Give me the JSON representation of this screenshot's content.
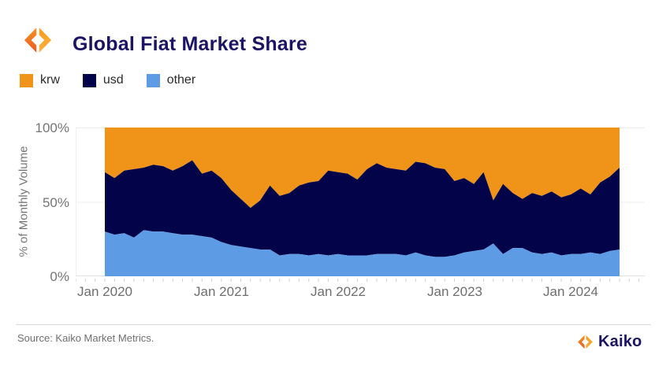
{
  "header": {
    "title": "Global Fiat Market Share"
  },
  "legend": {
    "items": [
      {
        "label": "krw",
        "color": "#F09419"
      },
      {
        "label": "usd",
        "color": "#020349"
      },
      {
        "label": "other",
        "color": "#5D9BE5"
      }
    ]
  },
  "chart_data": {
    "type": "area",
    "stacked": true,
    "title": "Global Fiat Market Share",
    "ylabel": "% of Monthly Volume",
    "xlabel": "",
    "ylim": [
      0,
      100
    ],
    "grid": "horizontal-light",
    "legend_position": "top-left",
    "yticks": [
      "100%",
      "50%",
      "0%"
    ],
    "xticks": [
      "Jan 2020",
      "Jan 2021",
      "Jan 2022",
      "Jan 2023",
      "Jan 2024"
    ],
    "x": [
      "Jan 2020",
      "Feb 2020",
      "Mar 2020",
      "Apr 2020",
      "May 2020",
      "Jun 2020",
      "Jul 2020",
      "Aug 2020",
      "Sep 2020",
      "Oct 2020",
      "Nov 2020",
      "Dec 2020",
      "Jan 2021",
      "Feb 2021",
      "Mar 2021",
      "Apr 2021",
      "May 2021",
      "Jun 2021",
      "Jul 2021",
      "Aug 2021",
      "Sep 2021",
      "Oct 2021",
      "Nov 2021",
      "Dec 2021",
      "Jan 2022",
      "Feb 2022",
      "Mar 2022",
      "Apr 2022",
      "May 2022",
      "Jun 2022",
      "Jul 2022",
      "Aug 2022",
      "Sep 2022",
      "Oct 2022",
      "Nov 2022",
      "Dec 2022",
      "Jan 2023",
      "Feb 2023",
      "Mar 2023",
      "Apr 2023",
      "May 2023",
      "Jun 2023",
      "Jul 2023",
      "Aug 2023",
      "Sep 2023",
      "Oct 2023",
      "Nov 2023",
      "Dec 2023",
      "Jan 2024",
      "Feb 2024",
      "Mar 2024",
      "Apr 2024",
      "May 2024",
      "Jun 2024"
    ],
    "series": [
      {
        "name": "other",
        "color": "#5D9BE5",
        "values": [
          30,
          28,
          29,
          26,
          31,
          30,
          30,
          29,
          28,
          28,
          27,
          26,
          23,
          21,
          20,
          19,
          18,
          18,
          14,
          15,
          15,
          14,
          15,
          14,
          15,
          14,
          14,
          14,
          15,
          15,
          15,
          14,
          16,
          14,
          13,
          13,
          14,
          16,
          17,
          18,
          22,
          15,
          19,
          19,
          16,
          15,
          16,
          14,
          15,
          15,
          16,
          15,
          17,
          18
        ]
      },
      {
        "name": "usd",
        "color": "#020349",
        "values": [
          40,
          38,
          42,
          46,
          42,
          45,
          44,
          42,
          46,
          50,
          42,
          45,
          43,
          37,
          32,
          27,
          33,
          43,
          40,
          41,
          46,
          49,
          49,
          57,
          55,
          55,
          51,
          58,
          61,
          58,
          57,
          57,
          61,
          62,
          60,
          59,
          50,
          50,
          45,
          52,
          29,
          47,
          37,
          33,
          40,
          39,
          41,
          39,
          40,
          44,
          39,
          48,
          50,
          55
        ]
      },
      {
        "name": "krw",
        "color": "#F09419",
        "values": [
          30,
          34,
          29,
          28,
          27,
          25,
          26,
          29,
          26,
          22,
          31,
          29,
          34,
          42,
          48,
          54,
          49,
          39,
          46,
          44,
          39,
          37,
          36,
          29,
          30,
          31,
          35,
          28,
          24,
          27,
          28,
          29,
          23,
          24,
          27,
          28,
          36,
          34,
          38,
          30,
          49,
          38,
          44,
          48,
          44,
          46,
          43,
          47,
          45,
          41,
          45,
          37,
          33,
          27
        ]
      }
    ]
  },
  "axes": {
    "y_title": "% of Monthly Volume",
    "y_labels": [
      "100%",
      "50%",
      "0%"
    ],
    "x_labels": [
      "Jan 2020",
      "Jan 2021",
      "Jan 2022",
      "Jan 2023",
      "Jan 2024"
    ]
  },
  "footer": {
    "source": "Source: Kaiko Market Metrics.",
    "brand": "Kaiko"
  }
}
